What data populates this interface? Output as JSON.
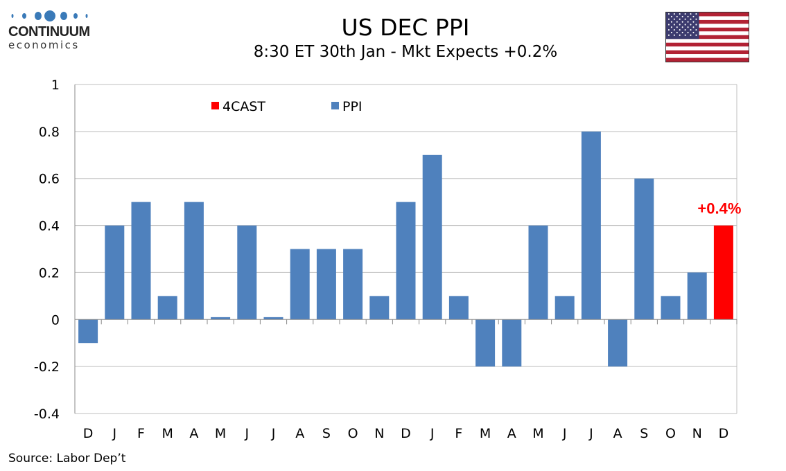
{
  "header": {
    "title": "US DEC PPI",
    "subtitle": "8:30 ET 30th Jan - Mkt Expects +0.2%"
  },
  "logo": {
    "line1": "CONTINUUM",
    "line2": "economics",
    "color": "#3a7ab8"
  },
  "flag": "us-flag",
  "source": "Source: Labor Dep’t",
  "chart_data": {
    "type": "bar",
    "title": "US DEC PPI",
    "subtitle": "8:30 ET 30th Jan - Mkt Expects +0.2%",
    "categories": [
      "D",
      "J",
      "F",
      "M",
      "A",
      "M",
      "J",
      "J",
      "A",
      "S",
      "O",
      "N",
      "D",
      "J",
      "F",
      "M",
      "A",
      "M",
      "J",
      "J",
      "A",
      "S",
      "O",
      "N",
      "D"
    ],
    "ylim": [
      -0.4,
      1
    ],
    "yticks": [
      "1",
      "0.8",
      "0.6",
      "0.4",
      "0.2",
      "0",
      "-0.2",
      "-0.4"
    ],
    "ytick_values": [
      1,
      0.8,
      0.6,
      0.4,
      0.2,
      0,
      -0.2,
      -0.4
    ],
    "grid": true,
    "legend_placement": "top-left",
    "series": [
      {
        "name": "4CAST",
        "color": "#ff0000",
        "values": [
          null,
          null,
          null,
          null,
          null,
          null,
          null,
          null,
          null,
          null,
          null,
          null,
          null,
          null,
          null,
          null,
          null,
          null,
          null,
          null,
          null,
          null,
          null,
          null,
          0.4
        ]
      },
      {
        "name": "PPI",
        "color": "#4f81bd",
        "values": [
          -0.1,
          0.4,
          0.5,
          0.1,
          0.5,
          0.01,
          0.4,
          0.01,
          0.3,
          0.3,
          0.3,
          0.1,
          0.5,
          0.7,
          0.1,
          -0.2,
          -0.2,
          0.4,
          0.1,
          0.8,
          -0.2,
          0.6,
          0.1,
          0.2,
          null
        ]
      }
    ],
    "annotations": [
      {
        "text": "+0.4%",
        "category_index": 24,
        "color": "#ff0000"
      }
    ]
  }
}
